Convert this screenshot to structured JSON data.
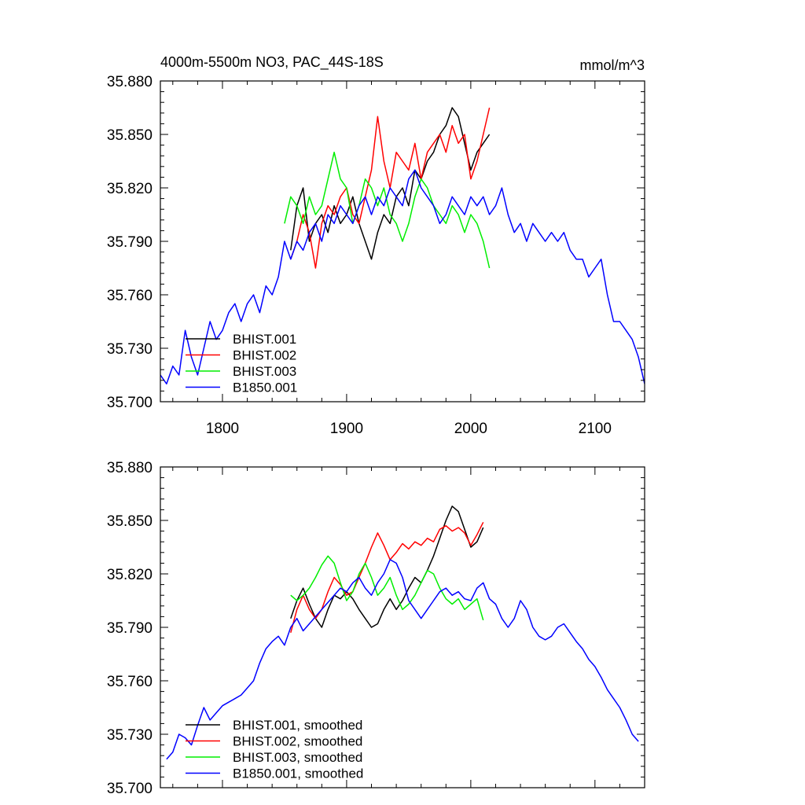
{
  "chart_data": [
    {
      "type": "line",
      "title": "4000m-5500m NO3, PAC_44S-18S",
      "units": "mmol/m^3",
      "xlim": [
        1750,
        2140
      ],
      "ylim": [
        35.7,
        35.88
      ],
      "xticks": [
        1800,
        1900,
        2000,
        2100
      ],
      "yticks": [
        "35.700",
        "35.730",
        "35.760",
        "35.790",
        "35.820",
        "35.850",
        "35.880"
      ],
      "legend_position": "lower-left",
      "series": [
        {
          "name": "BHIST.001",
          "color": "#000000",
          "x": [
            1855,
            1860,
            1865,
            1870,
            1875,
            1880,
            1885,
            1890,
            1895,
            1900,
            1905,
            1910,
            1915,
            1920,
            1925,
            1930,
            1935,
            1940,
            1945,
            1950,
            1955,
            1960,
            1965,
            1970,
            1975,
            1980,
            1985,
            1990,
            1995,
            2000,
            2005,
            2010,
            2015
          ],
          "y": [
            35.785,
            35.81,
            35.82,
            35.79,
            35.8,
            35.805,
            35.795,
            35.81,
            35.8,
            35.805,
            35.815,
            35.8,
            35.79,
            35.78,
            35.795,
            35.805,
            35.8,
            35.815,
            35.82,
            35.81,
            35.83,
            35.825,
            35.835,
            35.84,
            35.85,
            35.855,
            35.865,
            35.86,
            35.845,
            35.83,
            35.84,
            35.845,
            35.85
          ]
        },
        {
          "name": "BHIST.002",
          "color": "#ff0000",
          "x": [
            1855,
            1860,
            1865,
            1870,
            1875,
            1880,
            1885,
            1890,
            1895,
            1900,
            1905,
            1910,
            1915,
            1920,
            1925,
            1930,
            1935,
            1940,
            1945,
            1950,
            1955,
            1960,
            1965,
            1970,
            1975,
            1980,
            1985,
            1990,
            1995,
            2000,
            2005,
            2010,
            2015
          ],
          "y": [
            35.78,
            35.79,
            35.805,
            35.795,
            35.775,
            35.8,
            35.81,
            35.805,
            35.815,
            35.82,
            35.805,
            35.8,
            35.815,
            35.83,
            35.86,
            35.835,
            35.82,
            35.84,
            35.835,
            35.83,
            35.845,
            35.825,
            35.84,
            35.845,
            35.85,
            35.84,
            35.855,
            35.845,
            35.85,
            35.825,
            35.835,
            35.85,
            35.865
          ]
        },
        {
          "name": "BHIST.003",
          "color": "#00ee00",
          "x": [
            1850,
            1855,
            1860,
            1865,
            1870,
            1875,
            1880,
            1885,
            1890,
            1895,
            1900,
            1905,
            1910,
            1915,
            1920,
            1925,
            1930,
            1935,
            1940,
            1945,
            1950,
            1955,
            1960,
            1965,
            1970,
            1975,
            1980,
            1985,
            1990,
            1995,
            2000,
            2005,
            2010,
            2015
          ],
          "y": [
            35.8,
            35.815,
            35.81,
            35.8,
            35.815,
            35.805,
            35.81,
            35.825,
            35.84,
            35.825,
            35.82,
            35.8,
            35.81,
            35.825,
            35.82,
            35.81,
            35.82,
            35.805,
            35.8,
            35.79,
            35.8,
            35.815,
            35.825,
            35.82,
            35.81,
            35.805,
            35.8,
            35.81,
            35.805,
            35.795,
            35.805,
            35.8,
            35.79,
            35.775
          ]
        },
        {
          "name": "B1850.001",
          "color": "#0000ff",
          "x": [
            1750,
            1755,
            1760,
            1765,
            1770,
            1775,
            1780,
            1785,
            1790,
            1795,
            1800,
            1805,
            1810,
            1815,
            1820,
            1825,
            1830,
            1835,
            1840,
            1845,
            1850,
            1855,
            1860,
            1865,
            1870,
            1875,
            1880,
            1885,
            1890,
            1895,
            1900,
            1905,
            1910,
            1915,
            1920,
            1925,
            1930,
            1935,
            1940,
            1945,
            1950,
            1955,
            1960,
            1965,
            1970,
            1975,
            1980,
            1985,
            1990,
            1995,
            2000,
            2005,
            2010,
            2015,
            2020,
            2025,
            2030,
            2035,
            2040,
            2045,
            2050,
            2055,
            2060,
            2065,
            2070,
            2075,
            2080,
            2085,
            2090,
            2095,
            2100,
            2105,
            2110,
            2115,
            2120,
            2125,
            2130,
            2135,
            2140
          ],
          "y": [
            35.715,
            35.71,
            35.72,
            35.715,
            35.74,
            35.725,
            35.715,
            35.73,
            35.745,
            35.735,
            35.74,
            35.75,
            35.755,
            35.745,
            35.755,
            35.76,
            35.75,
            35.765,
            35.76,
            35.77,
            35.79,
            35.78,
            35.79,
            35.785,
            35.795,
            35.8,
            35.79,
            35.805,
            35.8,
            35.81,
            35.805,
            35.8,
            35.81,
            35.815,
            35.805,
            35.815,
            35.81,
            35.82,
            35.815,
            35.81,
            35.825,
            35.83,
            35.82,
            35.815,
            35.81,
            35.8,
            35.805,
            35.815,
            35.81,
            35.805,
            35.815,
            35.81,
            35.815,
            35.805,
            35.81,
            35.82,
            35.805,
            35.795,
            35.8,
            35.79,
            35.8,
            35.795,
            35.79,
            35.795,
            35.79,
            35.795,
            35.785,
            35.78,
            35.78,
            35.77,
            35.775,
            35.78,
            35.76,
            35.745,
            35.745,
            35.74,
            35.735,
            35.725,
            35.71
          ]
        }
      ]
    },
    {
      "type": "line",
      "title": "",
      "xlim": [
        1750,
        2140
      ],
      "ylim": [
        35.7,
        35.88
      ],
      "xticks": [
        1800,
        1900,
        2000,
        2100
      ],
      "yticks": [
        "35.700",
        "35.730",
        "35.760",
        "35.790",
        "35.820",
        "35.850",
        "35.880"
      ],
      "legend_position": "lower-left",
      "series": [
        {
          "name": "BHIST.001, smoothed",
          "color": "#000000",
          "x": [
            1855,
            1860,
            1865,
            1870,
            1875,
            1880,
            1885,
            1890,
            1895,
            1900,
            1905,
            1910,
            1915,
            1920,
            1925,
            1930,
            1935,
            1940,
            1945,
            1950,
            1955,
            1960,
            1965,
            1970,
            1975,
            1980,
            1985,
            1990,
            1995,
            2000,
            2005,
            2010
          ],
          "y": [
            35.795,
            35.805,
            35.812,
            35.803,
            35.795,
            35.79,
            35.8,
            35.808,
            35.806,
            35.81,
            35.806,
            35.8,
            35.795,
            35.79,
            35.792,
            35.8,
            35.806,
            35.8,
            35.805,
            35.812,
            35.818,
            35.815,
            35.822,
            35.83,
            35.84,
            35.85,
            35.858,
            35.855,
            35.845,
            35.835,
            35.838,
            35.846
          ]
        },
        {
          "name": "BHIST.002, smoothed",
          "color": "#ff0000",
          "x": [
            1855,
            1860,
            1865,
            1870,
            1875,
            1880,
            1885,
            1890,
            1895,
            1900,
            1905,
            1910,
            1915,
            1920,
            1925,
            1930,
            1935,
            1940,
            1945,
            1950,
            1955,
            1960,
            1965,
            1970,
            1975,
            1980,
            1985,
            1990,
            1995,
            2000,
            2005,
            2010
          ],
          "y": [
            35.787,
            35.8,
            35.808,
            35.8,
            35.795,
            35.8,
            35.81,
            35.818,
            35.814,
            35.808,
            35.81,
            35.818,
            35.826,
            35.835,
            35.843,
            35.836,
            35.828,
            35.832,
            35.837,
            35.834,
            35.838,
            35.836,
            35.84,
            35.838,
            35.845,
            35.847,
            35.844,
            35.846,
            35.843,
            35.836,
            35.842,
            35.849
          ]
        },
        {
          "name": "BHIST.003, smoothed",
          "color": "#00ee00",
          "x": [
            1855,
            1860,
            1865,
            1870,
            1875,
            1880,
            1885,
            1890,
            1895,
            1900,
            1905,
            1910,
            1915,
            1920,
            1925,
            1930,
            1935,
            1940,
            1945,
            1950,
            1955,
            1960,
            1965,
            1970,
            1975,
            1980,
            1985,
            1990,
            1995,
            2000,
            2005,
            2010
          ],
          "y": [
            35.808,
            35.805,
            35.808,
            35.812,
            35.818,
            35.825,
            35.83,
            35.826,
            35.815,
            35.805,
            35.81,
            35.82,
            35.826,
            35.818,
            35.808,
            35.812,
            35.818,
            35.808,
            35.8,
            35.803,
            35.808,
            35.815,
            35.822,
            35.82,
            35.812,
            35.806,
            35.803,
            35.806,
            35.8,
            35.803,
            35.806,
            35.794
          ]
        },
        {
          "name": "B1850.001, smoothed",
          "color": "#0000ff",
          "x": [
            1755,
            1760,
            1765,
            1770,
            1775,
            1780,
            1785,
            1790,
            1795,
            1800,
            1805,
            1810,
            1815,
            1820,
            1825,
            1830,
            1835,
            1840,
            1845,
            1850,
            1855,
            1860,
            1865,
            1870,
            1875,
            1880,
            1885,
            1890,
            1895,
            1900,
            1905,
            1910,
            1915,
            1920,
            1925,
            1930,
            1935,
            1940,
            1945,
            1950,
            1955,
            1960,
            1965,
            1970,
            1975,
            1980,
            1985,
            1990,
            1995,
            2000,
            2005,
            2010,
            2015,
            2020,
            2025,
            2030,
            2035,
            2040,
            2045,
            2050,
            2055,
            2060,
            2065,
            2070,
            2075,
            2080,
            2085,
            2090,
            2095,
            2100,
            2105,
            2110,
            2115,
            2120,
            2125,
            2130,
            2135
          ],
          "y": [
            35.716,
            35.72,
            35.73,
            35.728,
            35.724,
            35.735,
            35.745,
            35.738,
            35.742,
            35.746,
            35.748,
            35.75,
            35.752,
            35.756,
            35.76,
            35.77,
            35.778,
            35.782,
            35.785,
            35.78,
            35.79,
            35.795,
            35.788,
            35.792,
            35.796,
            35.8,
            35.804,
            35.808,
            35.812,
            35.81,
            35.815,
            35.818,
            35.812,
            35.808,
            35.815,
            35.82,
            35.828,
            35.826,
            35.818,
            35.805,
            35.8,
            35.795,
            35.8,
            35.805,
            35.81,
            35.812,
            35.808,
            35.81,
            35.806,
            35.805,
            35.812,
            35.815,
            35.806,
            35.803,
            35.795,
            35.79,
            35.795,
            35.805,
            35.8,
            35.79,
            35.785,
            35.783,
            35.785,
            35.79,
            35.792,
            35.787,
            35.782,
            35.778,
            35.772,
            35.768,
            35.762,
            35.755,
            35.75,
            35.745,
            35.738,
            35.73,
            35.726
          ]
        }
      ]
    }
  ]
}
